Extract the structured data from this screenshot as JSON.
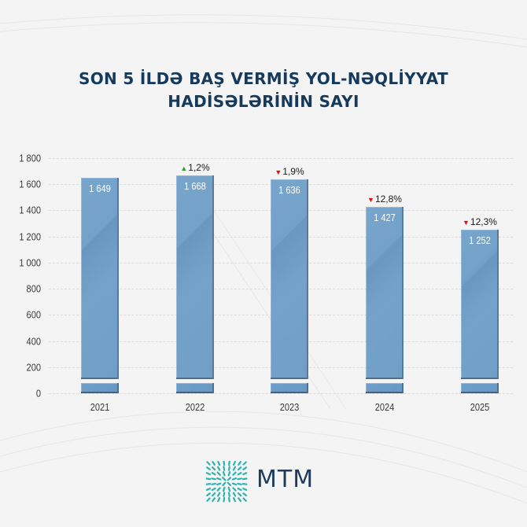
{
  "title": {
    "line1": "SON 5 İLDƏ BAŞ VERMİŞ YOL-NƏQLİYYAT",
    "line2": "HADİSƏLƏRİNİN SAYI"
  },
  "logo": {
    "text": "MTM",
    "icon": "mtm-burst-icon",
    "color": "#2bb3b1"
  },
  "colors": {
    "bar": "#6a9bc5",
    "title": "#163a5c",
    "up": "#2ca02c",
    "down": "#e01010"
  },
  "chart_data": {
    "type": "bar",
    "title": "SON 5 İLDƏ BAŞ VERMİŞ YOL-NƏQLİYYAT HADİSƏLƏRİNİN SAYI",
    "xlabel": "",
    "ylabel": "",
    "categories": [
      "2021",
      "2022",
      "2023",
      "2024",
      "2025"
    ],
    "values": [
      1649,
      1668,
      1636,
      1427,
      1252
    ],
    "value_labels": [
      "1 649",
      "1 668",
      "1 636",
      "1 427",
      "1 252"
    ],
    "changes": [
      null,
      {
        "direction": "up",
        "label": "1,2%"
      },
      {
        "direction": "down",
        "label": "1,9%"
      },
      {
        "direction": "down",
        "label": "12,8%"
      },
      {
        "direction": "down",
        "label": "12,3%"
      }
    ],
    "yticks": [
      "0",
      "200",
      "400",
      "600",
      "800",
      "1 000",
      "1 200",
      "1 400",
      "1 600",
      "1 800"
    ],
    "ylim": [
      0,
      1800
    ],
    "grid": true,
    "axis_break": true,
    "legend": null
  }
}
